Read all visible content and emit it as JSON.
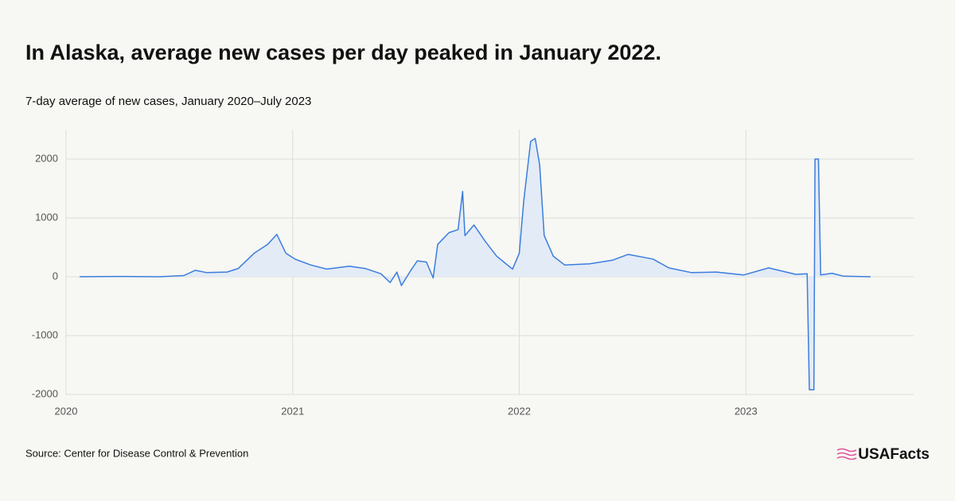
{
  "chart_data": {
    "type": "area-line",
    "title": "In Alaska, average new cases per day peaked in January 2022.",
    "subtitle": "7-day average of new cases, January 2020–July 2023",
    "source": "Source: Center for Disease Control & Prevention",
    "brand": "USAFacts",
    "color": "#3b7ddd",
    "fill": "#e3ebf7",
    "grid": true,
    "xlim": [
      2020,
      2023.74
    ],
    "xticks": [
      2020,
      2021,
      2022,
      2023
    ],
    "ylim": [
      -2000,
      2500
    ],
    "yticks": [
      -2000,
      -1000,
      0,
      1000,
      2000
    ],
    "x": [
      2020.06,
      2020.24,
      2020.41,
      2020.52,
      2020.57,
      2020.62,
      2020.71,
      2020.76,
      2020.83,
      2020.89,
      2020.93,
      2020.97,
      2021.01,
      2021.08,
      2021.15,
      2021.25,
      2021.32,
      2021.39,
      2021.43,
      2021.46,
      2021.48,
      2021.52,
      2021.55,
      2021.59,
      2021.62,
      2021.64,
      2021.69,
      2021.73,
      2021.75,
      2021.76,
      2021.8,
      2021.85,
      2021.9,
      2021.97,
      2022.0,
      2022.02,
      2022.05,
      2022.07,
      2022.09,
      2022.11,
      2022.15,
      2022.2,
      2022.31,
      2022.41,
      2022.48,
      2022.59,
      2022.66,
      2022.76,
      2022.87,
      2022.99,
      2023.1,
      2023.22,
      2023.27,
      2023.28,
      2023.3,
      2023.305,
      2023.32,
      2023.33,
      2023.38,
      2023.43,
      2023.55
    ],
    "values": [
      0,
      5,
      0,
      20,
      110,
      70,
      80,
      140,
      400,
      550,
      720,
      400,
      300,
      200,
      130,
      180,
      140,
      50,
      -100,
      80,
      -150,
      100,
      270,
      250,
      -20,
      550,
      750,
      800,
      1450,
      700,
      880,
      600,
      350,
      130,
      400,
      1300,
      2300,
      2350,
      1900,
      700,
      350,
      200,
      220,
      280,
      380,
      300,
      150,
      70,
      80,
      30,
      150,
      40,
      50,
      -1920,
      -1920,
      2000,
      2000,
      30,
      60,
      10,
      0
    ]
  }
}
